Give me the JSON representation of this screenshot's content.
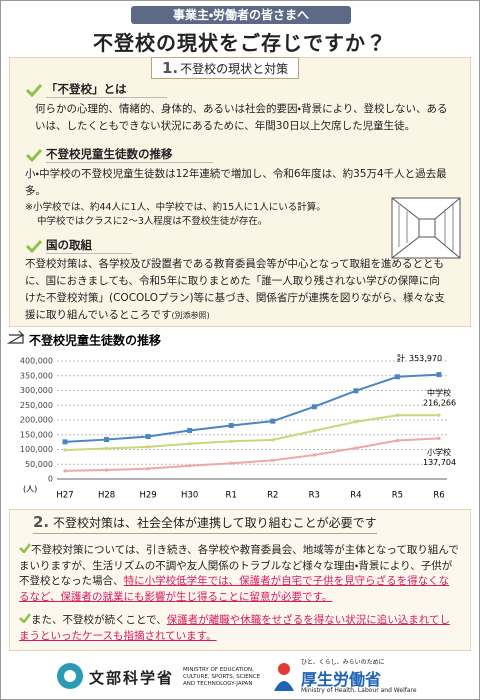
{
  "header": {
    "tagline": "事業主・労働者の皆さまへ",
    "title": "不登校の現状をご存じですか？"
  },
  "section1": {
    "number": "1.",
    "title": "不登校の現状と対策",
    "definition": {
      "heading": "「不登校」とは",
      "text": "何らかの心理的、情緒的、身体的、あるいは社会的要因・背景により、登校しない、あるいは、したくともできない状況にあるために、年間30日以上欠席した児童生徒。"
    },
    "trend": {
      "heading": "不登校児童生徒数の推移",
      "text": "小・中学校の不登校児童生徒数は12年連続で増加し、令和6年度は、約35万4千人と過去最多。",
      "notes": [
        "※小学校では、約44人に1人、中学校では、約15人に1人にいる計算。",
        "中学校ではクラスに2～3人程度は不登校生徒が存在。"
      ]
    },
    "efforts": {
      "heading": "国の取組",
      "text": "不登校対策は、各学校及び設置者である教育委員会等が中心となって取組を進めるとともに、国におきましても、令和5年に取りまとめた「誰一人取り残されない学びの保障に向けた不登校対策」(COCOLOプラン)等に基づき、関係省庁が連携を図りながら、様々な支援に取り組んでいるところです",
      "reference": "(別添参照)"
    }
  },
  "chart_data": {
    "type": "line",
    "title": "不登校児童生徒数の推移",
    "y_label": "(人)",
    "categories": [
      "H27",
      "H28",
      "H29",
      "H30",
      "R1",
      "R2",
      "R3",
      "R4",
      "R5",
      "R6"
    ],
    "ylim": [
      0,
      400000
    ],
    "yticks": [
      0,
      {
        "value": 50000,
        "label": "50,000"
      },
      {
        "value": 100000,
        "label": "100,000"
      },
      {
        "value": 150000,
        "label": "150,000"
      },
      {
        "value": 200000,
        "label": "200,000"
      },
      {
        "value": 250000,
        "label": "250,000"
      },
      {
        "value": 300000,
        "label": "300,000"
      },
      {
        "value": 350000,
        "label": "350,000"
      },
      {
        "value": 400000,
        "label": "400,000"
      }
    ],
    "grid": true,
    "series": [
      {
        "name": "計",
        "color": "#4a86c5",
        "values": [
          125991,
          133683,
          144031,
          164528,
          181272,
          196127,
          244940,
          299048,
          346482,
          353970
        ],
        "value_labels": [
          null,
          null,
          null,
          null,
          null,
          null,
          null,
          null,
          null,
          "353,970"
        ]
      },
      {
        "name": "中学校",
        "color": "#c8d87a",
        "values": [
          98408,
          103235,
          108999,
          119687,
          127922,
          132777,
          163442,
          193936,
          216112,
          216266
        ],
        "value_labels": [
          null,
          null,
          null,
          null,
          null,
          null,
          null,
          null,
          null,
          "216,266"
        ]
      },
      {
        "name": "小学校",
        "color": "#f0a7a7",
        "values": [
          27583,
          30448,
          35032,
          44841,
          53350,
          63350,
          81498,
          105112,
          130370,
          137704
        ],
        "value_labels": [
          null,
          null,
          null,
          null,
          null,
          null,
          null,
          null,
          null,
          "137,704"
        ]
      }
    ]
  },
  "section2": {
    "number": "2.",
    "title": "不登校対策は、社会全体が連携して取り組むことが必要です",
    "paragraphs": [
      {
        "segments": [
          {
            "text": "不登校対策については、引き続き、各学校や教育委員会、地域等が主体となって取り組んでまいりますが、生活リズムの不調や友人関係のトラブルなど様々な理由・背景により、子供が不登校となった場合、",
            "highlight": false
          },
          {
            "text": "特に小学校低学年では、保護者が自宅で子供を見守らざるを得なくなるなど、保護者の就業にも影響が生じ得ることに留意が必要です。",
            "highlight": true
          }
        ]
      },
      {
        "segments": [
          {
            "text": "また、不登校が続くことで、",
            "highlight": false
          },
          {
            "text": "保護者が離職や休職をせざるを得ない状況に追い込まれてしまうといったケースも指摘されています。",
            "highlight": true
          }
        ]
      }
    ]
  },
  "footer": {
    "mext": {
      "name": "文部科学省",
      "english": "MINISTRY OF EDUCATION, CULTURE, SPORTS, SCIENCE AND TECHNOLOGY-JAPAN"
    },
    "mhlw": {
      "slogan": "ひと、くらし、みらいのために",
      "name": "厚生労働省",
      "english": "Ministry of Health, Labour and Welfare"
    }
  }
}
